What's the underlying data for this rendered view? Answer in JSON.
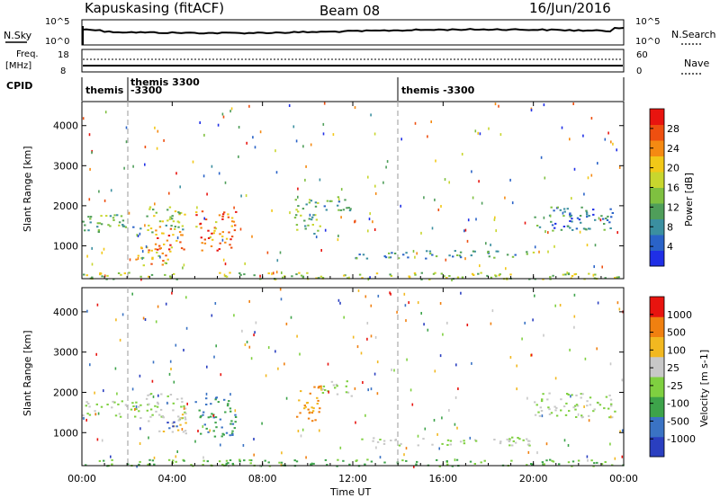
{
  "header": {
    "station": "Kapuskasing (fitACF)",
    "beam": "Beam 08",
    "date": "16/Jun/2016"
  },
  "noise_panel": {
    "left_label": "N.Sky",
    "right_label": "N.Search",
    "left_ticks": [
      "10^5",
      "10^0"
    ],
    "right_ticks": [
      "10^5",
      "10^0"
    ]
  },
  "freq_panel": {
    "label_line1": "Freq.",
    "label_line2": "[MHz]",
    "right_label": "Nave",
    "left_ticks": [
      "18",
      "8"
    ],
    "right_ticks": [
      "60",
      "0"
    ]
  },
  "cpid_panel": {
    "label": "CPID",
    "segments": [
      {
        "t": 0.0,
        "text": "themis"
      },
      {
        "t": 2.0,
        "text": "themis 3300"
      },
      {
        "t": 2.0,
        "text": "-3300"
      },
      {
        "t": 14.0,
        "text": "themis -3300"
      }
    ]
  },
  "x_axis": {
    "label": "Time UT",
    "ticks": [
      "00:00",
      "04:00",
      "08:00",
      "12:00",
      "16:00",
      "20:00",
      "00:00"
    ]
  },
  "chart_data": [
    {
      "type": "heatmap",
      "id": "power",
      "ylabel": "Slant Range [km]",
      "yticks": [
        1000,
        2000,
        3000,
        4000
      ],
      "xlim": [
        0,
        24
      ],
      "ylim": [
        180,
        4600
      ],
      "colorbar": {
        "label": "Power [dB]",
        "ticks": [
          "4",
          "8",
          "12",
          "16",
          "20",
          "24",
          "28"
        ],
        "colors": [
          "#1f2fe6",
          "#2a63c8",
          "#3b8fa0",
          "#4f9e5a",
          "#7fc040",
          "#c8d62e",
          "#f2c818",
          "#f58a12",
          "#ee4f10",
          "#e8140f"
        ]
      },
      "regions": [
        {
          "t0": 0.0,
          "t1": 2.6,
          "r0": 1350,
          "r1": 1800,
          "level": 0.35
        },
        {
          "t0": 2.8,
          "t1": 4.6,
          "r0": 1300,
          "r1": 2000,
          "level": 0.45
        },
        {
          "t0": 3.2,
          "t1": 4.6,
          "r0": 900,
          "r1": 1500,
          "level": 0.85
        },
        {
          "t0": 2.2,
          "t1": 4.0,
          "r0": 500,
          "r1": 1000,
          "level": 0.7
        },
        {
          "t0": 5.0,
          "t1": 6.8,
          "r0": 900,
          "r1": 1900,
          "level": 0.8
        },
        {
          "t0": 9.4,
          "t1": 10.6,
          "r0": 1300,
          "r1": 2200,
          "level": 0.4
        },
        {
          "t0": 10.6,
          "t1": 12.0,
          "r0": 1900,
          "r1": 2300,
          "level": 0.3
        },
        {
          "t0": 12.0,
          "t1": 20.0,
          "r0": 700,
          "r1": 900,
          "level": 0.3
        },
        {
          "t0": 20.0,
          "t1": 23.6,
          "r0": 1400,
          "r1": 2000,
          "level": 0.2
        },
        {
          "t0": 0.0,
          "t1": 24.0,
          "r0": 180,
          "r1": 350,
          "level": 0.5
        }
      ]
    },
    {
      "type": "heatmap",
      "id": "velocity",
      "ylabel": "Slant Range [km]",
      "yticks": [
        1000,
        2000,
        3000,
        4000
      ],
      "xlim": [
        0,
        24
      ],
      "ylim": [
        180,
        4600
      ],
      "colorbar": {
        "label": "Velocity [m s-1]",
        "ticks": [
          "1000",
          "500",
          "100",
          "25",
          "-25",
          "-100",
          "-500",
          "-1000"
        ],
        "colors": [
          "#2a3fc0",
          "#3a73c4",
          "#3da34a",
          "#7fd040",
          "#c8c8c8",
          "#f2b820",
          "#f08010",
          "#e8140f"
        ]
      },
      "regions": [
        {
          "t0": 0.0,
          "t1": 2.6,
          "r0": 1350,
          "r1": 1800,
          "level": 4
        },
        {
          "t0": 2.8,
          "t1": 4.6,
          "r0": 1300,
          "r1": 2000,
          "level": 4
        },
        {
          "t0": 3.2,
          "t1": 4.6,
          "r0": 1000,
          "r1": 1500,
          "level": 5
        },
        {
          "t0": 3.6,
          "t1": 4.4,
          "r0": 1100,
          "r1": 1300,
          "level": 1
        },
        {
          "t0": 5.0,
          "t1": 6.8,
          "r0": 900,
          "r1": 1900,
          "level": 2
        },
        {
          "t0": 9.4,
          "t1": 10.6,
          "r0": 1300,
          "r1": 2200,
          "level": 6
        },
        {
          "t0": 10.6,
          "t1": 12.0,
          "r0": 1900,
          "r1": 2300,
          "level": 4
        },
        {
          "t0": 12.0,
          "t1": 20.0,
          "r0": 700,
          "r1": 900,
          "level": 4
        },
        {
          "t0": 20.0,
          "t1": 23.6,
          "r0": 1400,
          "r1": 2000,
          "level": 4
        },
        {
          "t0": 0.0,
          "t1": 24.0,
          "r0": 180,
          "r1": 350,
          "level": 3
        }
      ]
    }
  ]
}
